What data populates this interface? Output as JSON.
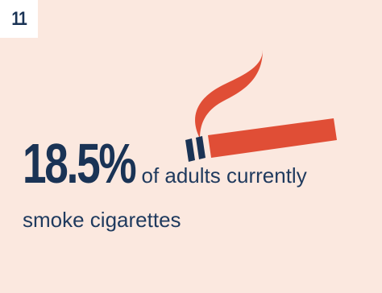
{
  "badge": {
    "number": "11"
  },
  "stat": {
    "value": "18.5%",
    "description_line1": "of adults currently",
    "description_line2": "smoke cigarettes"
  },
  "icons": {
    "illustration": "cigarette-icon"
  },
  "colors": {
    "background": "#fbe8df",
    "badge_background": "#ffffff",
    "navy": "#1a3355",
    "accent": "#e04e36"
  }
}
